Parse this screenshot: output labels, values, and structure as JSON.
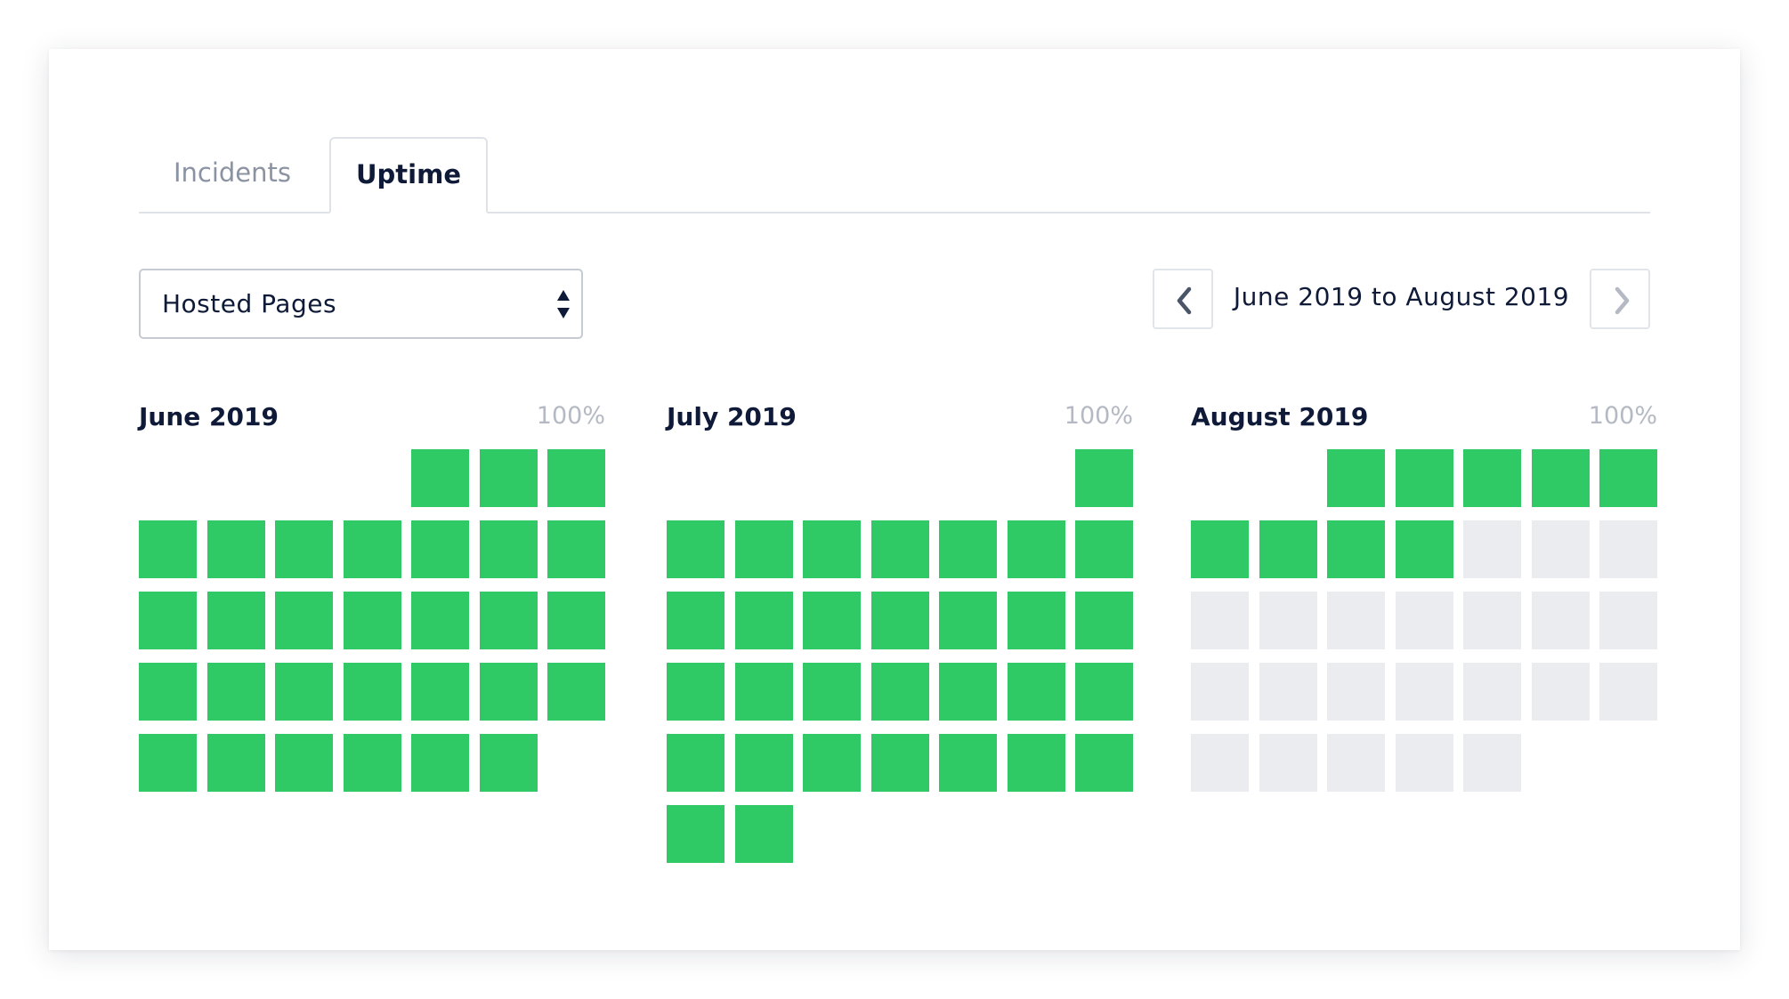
{
  "tabs": {
    "incidents_label": "Incidents",
    "uptime_label": "Uptime",
    "active": "Uptime"
  },
  "component_select": {
    "value": "Hosted Pages"
  },
  "date_range": {
    "label": "June 2019 to August 2019"
  },
  "colors": {
    "operational": "#2fca66",
    "no_data": "#ebecef",
    "text_dark": "#0e1a37",
    "text_muted": "#8b93a3"
  },
  "months": [
    {
      "title": "June 2019",
      "uptime": "100%",
      "start_weekday": 4,
      "days": 30,
      "operational_days": 30
    },
    {
      "title": "July 2019",
      "uptime": "100%",
      "start_weekday": 6,
      "days": 31,
      "operational_days": 31
    },
    {
      "title": "August 2019",
      "uptime": "100%",
      "start_weekday": 2,
      "days": 31,
      "operational_days": 9
    }
  ]
}
